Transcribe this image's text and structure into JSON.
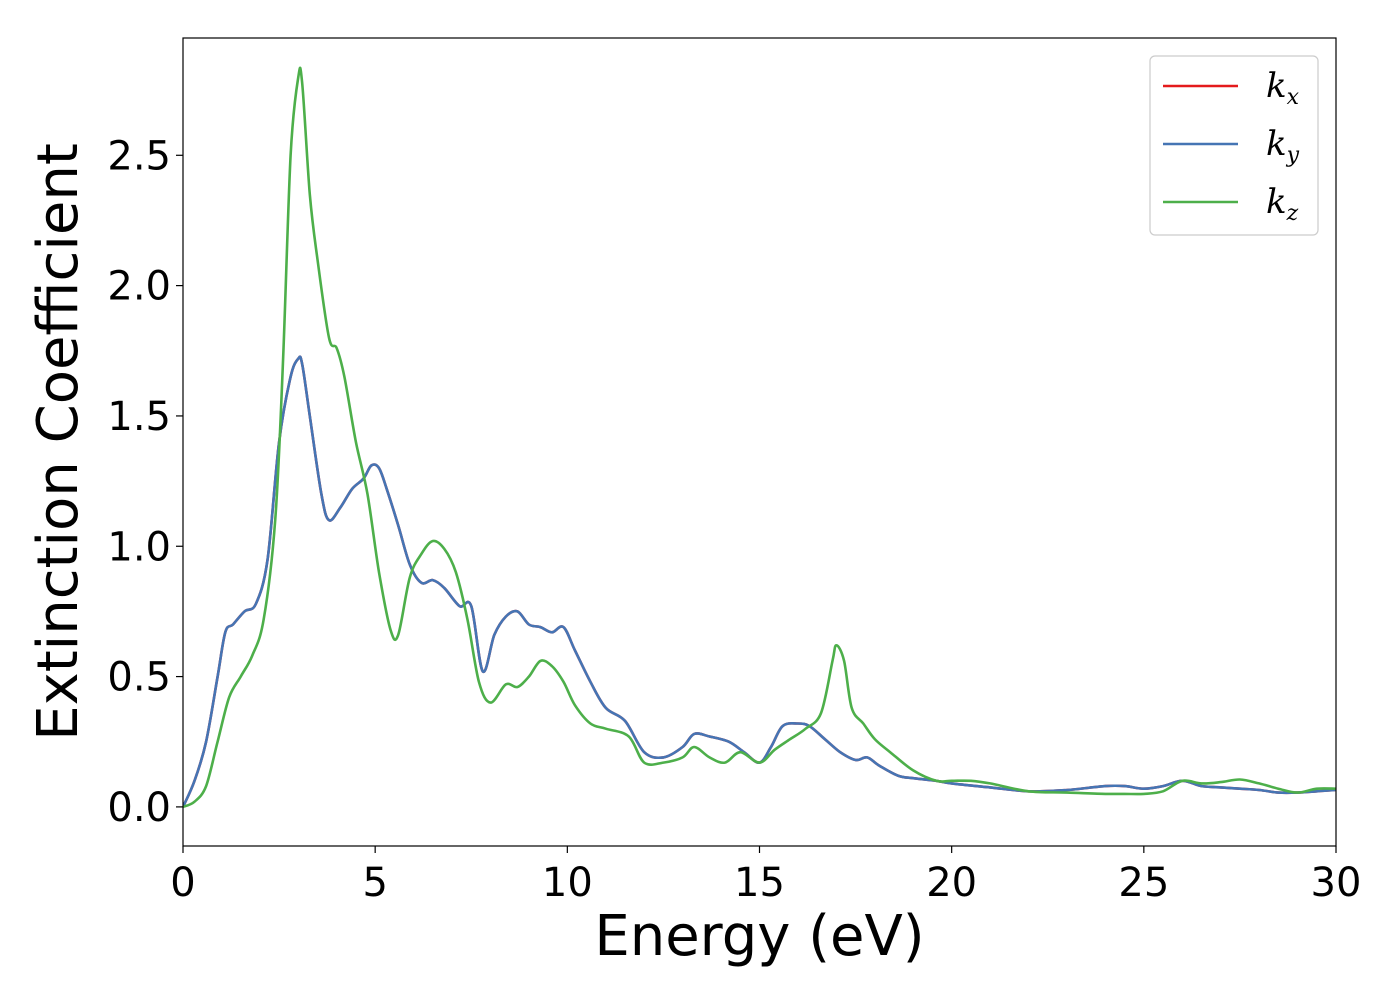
{
  "chart_data": {
    "type": "line",
    "title": "",
    "xlabel": "Energy (eV)",
    "ylabel": "Extinction Coefficient",
    "xlim": [
      0,
      30
    ],
    "ylim": [
      -0.15,
      2.95
    ],
    "xticks": [
      0,
      5,
      10,
      15,
      20,
      25,
      30
    ],
    "xtick_labels": [
      "0",
      "5",
      "10",
      "15",
      "20",
      "25",
      "30"
    ],
    "yticks": [
      0.0,
      0.5,
      1.0,
      1.5,
      2.0,
      2.5
    ],
    "ytick_labels": [
      "0.0",
      "0.5",
      "1.0",
      "1.5",
      "2.0",
      "2.5"
    ],
    "grid": false,
    "legend_position": "top-right",
    "series": [
      {
        "name": "k_x",
        "label_main": "k",
        "label_sub": "x",
        "color": "#e41a1c",
        "x": [
          0,
          0.3,
          0.6,
          0.9,
          1.1,
          1.3,
          1.6,
          1.9,
          2.2,
          2.5,
          2.8,
          3.0,
          3.1,
          3.3,
          3.6,
          3.8,
          4.1,
          4.4,
          4.7,
          4.9,
          5.1,
          5.3,
          5.6,
          5.9,
          6.2,
          6.5,
          6.8,
          7.2,
          7.5,
          7.8,
          8.1,
          8.4,
          8.7,
          9.0,
          9.3,
          9.6,
          9.9,
          10.2,
          10.6,
          11.0,
          11.5,
          12.0,
          12.5,
          13.0,
          13.3,
          13.7,
          14.2,
          14.6,
          15.0,
          15.3,
          15.6,
          16.0,
          16.3,
          16.7,
          17.1,
          17.5,
          17.8,
          18.1,
          18.6,
          19.0,
          19.6,
          20.0,
          21.0,
          22.0,
          23.0,
          24.0,
          24.5,
          25.0,
          25.5,
          26.0,
          26.5,
          27.0,
          27.5,
          28.0,
          28.5,
          29.0,
          29.5,
          30.0
        ],
        "y": [
          0.0,
          0.1,
          0.25,
          0.5,
          0.67,
          0.7,
          0.75,
          0.78,
          0.95,
          1.4,
          1.65,
          1.72,
          1.7,
          1.5,
          1.2,
          1.1,
          1.15,
          1.22,
          1.26,
          1.31,
          1.3,
          1.22,
          1.08,
          0.93,
          0.86,
          0.87,
          0.84,
          0.77,
          0.77,
          0.52,
          0.66,
          0.73,
          0.75,
          0.7,
          0.69,
          0.67,
          0.69,
          0.6,
          0.48,
          0.38,
          0.33,
          0.21,
          0.19,
          0.23,
          0.28,
          0.27,
          0.25,
          0.21,
          0.17,
          0.23,
          0.31,
          0.32,
          0.31,
          0.26,
          0.21,
          0.18,
          0.19,
          0.16,
          0.12,
          0.11,
          0.1,
          0.09,
          0.075,
          0.06,
          0.065,
          0.08,
          0.08,
          0.07,
          0.08,
          0.1,
          0.08,
          0.075,
          0.07,
          0.065,
          0.055,
          0.055,
          0.06,
          0.065
        ]
      },
      {
        "name": "k_y",
        "label_main": "k",
        "label_sub": "y",
        "color": "#4575b4",
        "x": [
          0,
          0.3,
          0.6,
          0.9,
          1.1,
          1.3,
          1.6,
          1.9,
          2.2,
          2.5,
          2.8,
          3.0,
          3.1,
          3.3,
          3.6,
          3.8,
          4.1,
          4.4,
          4.7,
          4.9,
          5.1,
          5.3,
          5.6,
          5.9,
          6.2,
          6.5,
          6.8,
          7.2,
          7.5,
          7.8,
          8.1,
          8.4,
          8.7,
          9.0,
          9.3,
          9.6,
          9.9,
          10.2,
          10.6,
          11.0,
          11.5,
          12.0,
          12.5,
          13.0,
          13.3,
          13.7,
          14.2,
          14.6,
          15.0,
          15.3,
          15.6,
          16.0,
          16.3,
          16.7,
          17.1,
          17.5,
          17.8,
          18.1,
          18.6,
          19.0,
          19.6,
          20.0,
          21.0,
          22.0,
          23.0,
          24.0,
          24.5,
          25.0,
          25.5,
          26.0,
          26.5,
          27.0,
          27.5,
          28.0,
          28.5,
          29.0,
          29.5,
          30.0
        ],
        "y": [
          0.0,
          0.1,
          0.25,
          0.5,
          0.67,
          0.7,
          0.75,
          0.78,
          0.95,
          1.4,
          1.65,
          1.72,
          1.7,
          1.5,
          1.2,
          1.1,
          1.15,
          1.22,
          1.26,
          1.31,
          1.3,
          1.22,
          1.08,
          0.93,
          0.86,
          0.87,
          0.84,
          0.77,
          0.77,
          0.52,
          0.66,
          0.73,
          0.75,
          0.7,
          0.69,
          0.67,
          0.69,
          0.6,
          0.48,
          0.38,
          0.33,
          0.21,
          0.19,
          0.23,
          0.28,
          0.27,
          0.25,
          0.21,
          0.17,
          0.23,
          0.31,
          0.32,
          0.31,
          0.26,
          0.21,
          0.18,
          0.19,
          0.16,
          0.12,
          0.11,
          0.1,
          0.09,
          0.075,
          0.06,
          0.065,
          0.08,
          0.08,
          0.07,
          0.08,
          0.1,
          0.08,
          0.075,
          0.07,
          0.065,
          0.055,
          0.055,
          0.06,
          0.065
        ]
      },
      {
        "name": "k_z",
        "label_main": "k",
        "label_sub": "z",
        "color": "#4daf4a",
        "x": [
          0,
          0.3,
          0.6,
          0.9,
          1.2,
          1.5,
          1.8,
          2.1,
          2.4,
          2.6,
          2.8,
          3.0,
          3.1,
          3.3,
          3.5,
          3.8,
          4.0,
          4.2,
          4.5,
          4.8,
          5.1,
          5.4,
          5.6,
          5.9,
          6.2,
          6.5,
          6.8,
          7.1,
          7.4,
          7.7,
          8.0,
          8.4,
          8.7,
          9.0,
          9.3,
          9.6,
          9.9,
          10.2,
          10.6,
          11.0,
          11.6,
          12.0,
          12.5,
          13.0,
          13.3,
          13.7,
          14.1,
          14.5,
          15.0,
          15.4,
          15.8,
          16.2,
          16.6,
          16.9,
          17.0,
          17.2,
          17.4,
          17.7,
          18.0,
          18.4,
          19.0,
          19.6,
          20.0,
          20.5,
          21.0,
          22.0,
          23.0,
          24.0,
          24.5,
          25.0,
          25.5,
          26.0,
          26.5,
          27.0,
          27.5,
          28.0,
          28.5,
          29.0,
          29.5,
          30.0
        ],
        "y": [
          0.0,
          0.02,
          0.08,
          0.25,
          0.42,
          0.5,
          0.58,
          0.72,
          1.1,
          1.7,
          2.5,
          2.8,
          2.78,
          2.35,
          2.1,
          1.8,
          1.76,
          1.65,
          1.4,
          1.2,
          0.9,
          0.68,
          0.66,
          0.88,
          0.97,
          1.02,
          0.99,
          0.9,
          0.72,
          0.48,
          0.4,
          0.47,
          0.46,
          0.5,
          0.56,
          0.54,
          0.48,
          0.39,
          0.32,
          0.3,
          0.27,
          0.17,
          0.17,
          0.19,
          0.23,
          0.19,
          0.17,
          0.21,
          0.17,
          0.22,
          0.26,
          0.3,
          0.36,
          0.56,
          0.62,
          0.56,
          0.38,
          0.32,
          0.26,
          0.21,
          0.14,
          0.1,
          0.1,
          0.1,
          0.09,
          0.06,
          0.055,
          0.05,
          0.05,
          0.05,
          0.06,
          0.1,
          0.09,
          0.095,
          0.105,
          0.09,
          0.07,
          0.055,
          0.07,
          0.07
        ]
      }
    ]
  }
}
